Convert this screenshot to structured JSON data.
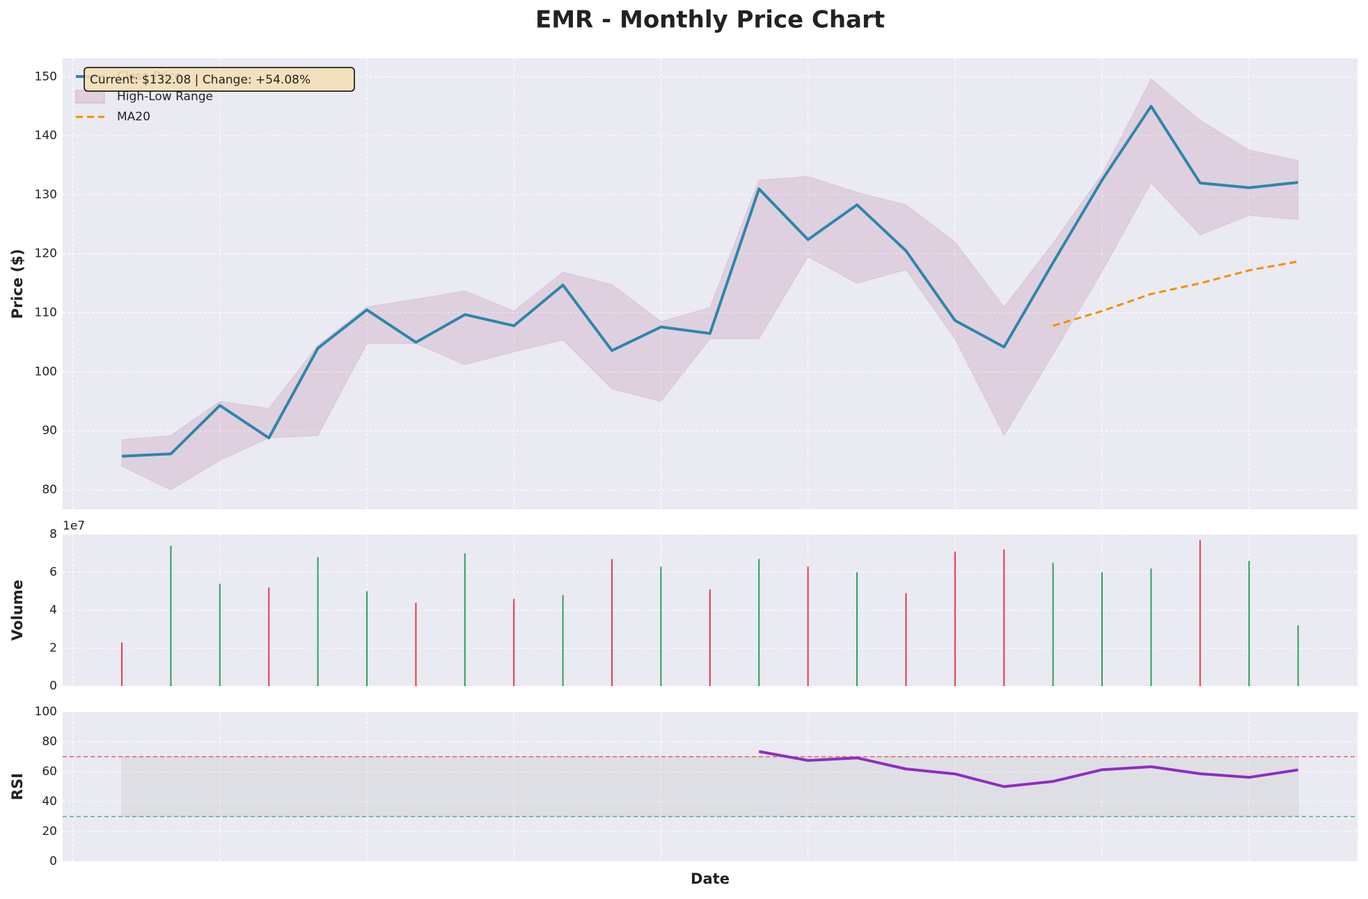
{
  "chart_data": [
    {
      "type": "line",
      "title": "EMR - Monthly Price Chart",
      "ylabel": "Price ($)",
      "ylim": [
        76.7,
        153.1
      ],
      "yticks": [
        80,
        90,
        100,
        110,
        120,
        130,
        140,
        150
      ],
      "grid": true,
      "legend": "upper left",
      "annotation": "Current: $132.08 | Change: +54.08%",
      "series": [
        {
          "name": "Close Price",
          "color": "#2e86ab",
          "values": [
            85.7,
            86.1,
            94.3,
            88.8,
            104.0,
            110.5,
            105.0,
            109.7,
            107.8,
            114.7,
            103.6,
            107.6,
            106.5,
            131.0,
            122.4,
            128.3,
            120.5,
            108.7,
            104.2,
            118.5,
            132.5,
            145.0,
            132.0,
            131.2,
            132.1
          ]
        },
        {
          "name": "High-Low Range",
          "type": "range",
          "color": "#a23b72",
          "high": [
            88.5,
            89.2,
            95.0,
            93.8,
            104.5,
            111.0,
            112.3,
            113.7,
            110.3,
            116.9,
            114.8,
            108.5,
            110.9,
            132.5,
            133.1,
            130.4,
            128.3,
            122.0,
            111.0,
            121.8,
            133.5,
            149.6,
            142.6,
            137.6,
            135.8
          ],
          "low": [
            84.0,
            80.0,
            85.0,
            88.8,
            89.2,
            104.8,
            104.8,
            101.2,
            103.4,
            105.4,
            97.1,
            95.0,
            105.6,
            105.6,
            119.5,
            115.0,
            117.3,
            105.6,
            89.2,
            103.0,
            117.0,
            132.0,
            123.2,
            126.5,
            125.8
          ]
        },
        {
          "name": "MA20",
          "color": "#f18f01",
          "dashed": true,
          "values": [
            null,
            null,
            null,
            null,
            null,
            null,
            null,
            null,
            null,
            null,
            null,
            null,
            null,
            null,
            null,
            null,
            null,
            null,
            null,
            107.8,
            110.3,
            113.2,
            115.0,
            117.2,
            118.7
          ]
        }
      ]
    },
    {
      "type": "bar",
      "ylabel": "Volume",
      "offset_label": "1e7",
      "ylim": [
        0,
        8
      ],
      "yticks": [
        0,
        2,
        4,
        6,
        8
      ],
      "grid": true,
      "values": [
        2.3,
        7.4,
        5.4,
        5.2,
        6.8,
        5.0,
        4.4,
        7.0,
        4.6,
        4.8,
        6.7,
        6.3,
        5.1,
        6.7,
        6.3,
        6.0,
        4.9,
        7.1,
        7.2,
        6.5,
        6.0,
        6.2,
        7.7,
        6.6,
        3.2
      ],
      "colors": [
        "#e63946",
        "#2ca05a",
        "#2ca05a",
        "#e63946",
        "#2ca05a",
        "#2ca05a",
        "#e63946",
        "#2ca05a",
        "#e63946",
        "#2ca05a",
        "#e63946",
        "#2ca05a",
        "#e63946",
        "#2ca05a",
        "#e63946",
        "#2ca05a",
        "#e63946",
        "#e63946",
        "#e63946",
        "#2ca05a",
        "#2ca05a",
        "#2ca05a",
        "#e63946",
        "#2ca05a",
        "#2ca05a"
      ]
    },
    {
      "type": "line",
      "ylabel": "RSI",
      "xlabel": "Date",
      "ylim": [
        0,
        100
      ],
      "yticks": [
        0,
        20,
        40,
        60,
        80,
        100
      ],
      "grid": true,
      "hlines": [
        {
          "value": 70,
          "color": "#e63946"
        },
        {
          "value": 30,
          "color": "#2ca05a"
        }
      ],
      "series": [
        {
          "name": "RSI",
          "color": "#8e2dc5",
          "values": [
            null,
            null,
            null,
            null,
            null,
            null,
            null,
            null,
            null,
            null,
            null,
            null,
            null,
            73.5,
            67.5,
            69.2,
            61.8,
            58.5,
            50.0,
            53.5,
            61.3,
            63.3,
            58.6,
            56.2,
            61.2
          ]
        }
      ]
    }
  ]
}
